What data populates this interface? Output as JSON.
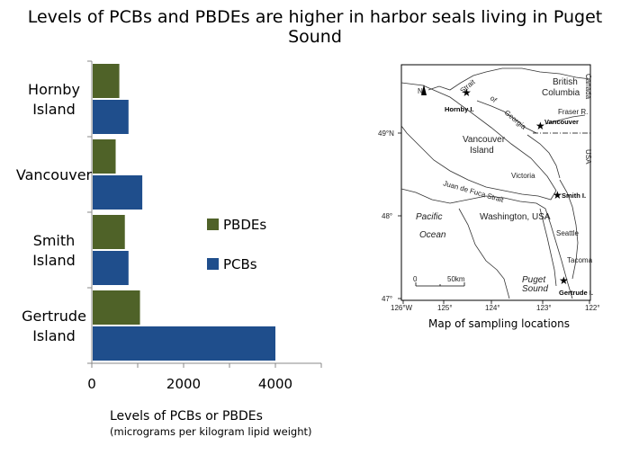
{
  "title": "Levels of PCBs and PBDEs are higher in harbor seals living in Puget Sound",
  "chart_data": {
    "type": "bar",
    "orientation": "horizontal",
    "categories": [
      [
        "Hornby",
        "Island"
      ],
      [
        "Vancouver"
      ],
      [
        "Smith",
        "Island"
      ],
      [
        "Gertrude",
        "Island"
      ]
    ],
    "series": [
      {
        "name": "PBDEs",
        "color": "#4f6228",
        "values": [
          600,
          520,
          720,
          1050
        ]
      },
      {
        "name": "PCBs",
        "color": "#1f4e8c",
        "values": [
          800,
          1100,
          800,
          4000
        ]
      }
    ],
    "xlim": [
      0,
      5000
    ],
    "xticks": [
      0,
      2000,
      4000
    ],
    "xlabel": "Levels of PCBs or PBDEs",
    "xlabel_sub": "(micrograms per kilogram lipid weight)",
    "ylabel": "",
    "legend_position": "right",
    "grid": false
  },
  "map": {
    "caption": "Map of sampling locations",
    "region_labels": {
      "british_columbia": [
        "British",
        "Columbia"
      ],
      "canada": "Canada",
      "usa": "USA",
      "vancouver_island": [
        "Vancouver",
        "Island"
      ],
      "washington": "Washington, USA",
      "pacific": "Pacific",
      "ocean": "Ocean",
      "puget": [
        "Puget",
        "Sound"
      ],
      "strait_georgia": [
        "Strait",
        "of",
        "Georgia"
      ],
      "juan_de_fuca": "Juan de Fuca Strait",
      "fraser": "Fraser R.",
      "victoria": "Victoria",
      "seattle": "Seattle",
      "tacoma": "Tacoma"
    },
    "sites": [
      "Hornby I.",
      "Vancouver",
      "Smith I.",
      "Gertrude I."
    ],
    "lat_labels": [
      "49°N",
      "48°",
      "47°"
    ],
    "lon_labels": [
      "126°W",
      "125°",
      "124°",
      "123°",
      "122°"
    ],
    "scale": [
      "0",
      "50km"
    ],
    "north": "N"
  }
}
